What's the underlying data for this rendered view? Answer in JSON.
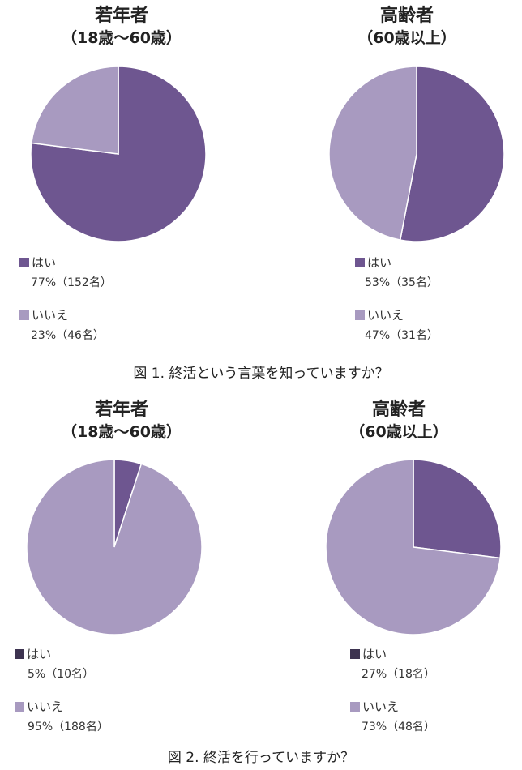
{
  "figures": [
    {
      "caption": "図 1. 終活という言葉を知っていますか？",
      "panels": [
        {
          "title_line1": "若年者",
          "title_line2": "（18歳〜60歳）",
          "items": [
            {
              "label": "はい",
              "value_text": "77%（152名）",
              "color": "#6e5690"
            },
            {
              "label": "いいえ",
              "value_text": "23%（46名）",
              "color": "#a89ac0"
            }
          ]
        },
        {
          "title_line1": "高齢者",
          "title_line2": "（60歳以上）",
          "items": [
            {
              "label": "はい",
              "value_text": "53%（35名）",
              "color": "#6e5690"
            },
            {
              "label": "いいえ",
              "value_text": "47%（31名）",
              "color": "#a89ac0"
            }
          ]
        }
      ]
    },
    {
      "caption": "図 2. 終活を行っていますか？",
      "panels": [
        {
          "title_line1": "若年者",
          "title_line2": "（18歳〜60歳）",
          "items": [
            {
              "label": "はい",
              "value_text": "5%（10名）",
              "color": "#6e5690",
              "legend_color": "#3d3350"
            },
            {
              "label": "いいえ",
              "value_text": "95%（188名）",
              "color": "#a89ac0"
            }
          ]
        },
        {
          "title_line1": "高齢者",
          "title_line2": "（60歳以上）",
          "items": [
            {
              "label": "はい",
              "value_text": "27%（18名）",
              "color": "#6e5690",
              "legend_color": "#3d3350"
            },
            {
              "label": "いいえ",
              "value_text": "73%（48名）",
              "color": "#a89ac0"
            }
          ]
        }
      ]
    }
  ],
  "chart_data": [
    {
      "type": "pie",
      "title": "若年者（18歳〜60歳）",
      "categories": [
        "はい",
        "いいえ"
      ],
      "values": [
        77,
        23
      ],
      "counts": [
        152,
        46
      ],
      "colors": [
        "#6e5690",
        "#a89ac0"
      ]
    },
    {
      "type": "pie",
      "title": "高齢者（60歳以上）",
      "categories": [
        "はい",
        "いいえ"
      ],
      "values": [
        53,
        47
      ],
      "counts": [
        35,
        31
      ],
      "colors": [
        "#6e5690",
        "#a89ac0"
      ]
    },
    {
      "type": "pie",
      "title": "若年者（18歳〜60歳）",
      "categories": [
        "はい",
        "いいえ"
      ],
      "values": [
        5,
        95
      ],
      "counts": [
        10,
        188
      ],
      "colors": [
        "#6e5690",
        "#a89ac0"
      ]
    },
    {
      "type": "pie",
      "title": "高齢者（60歳以上）",
      "categories": [
        "はい",
        "いいえ"
      ],
      "values": [
        27,
        73
      ],
      "counts": [
        18,
        48
      ],
      "colors": [
        "#6e5690",
        "#a89ac0"
      ]
    }
  ]
}
